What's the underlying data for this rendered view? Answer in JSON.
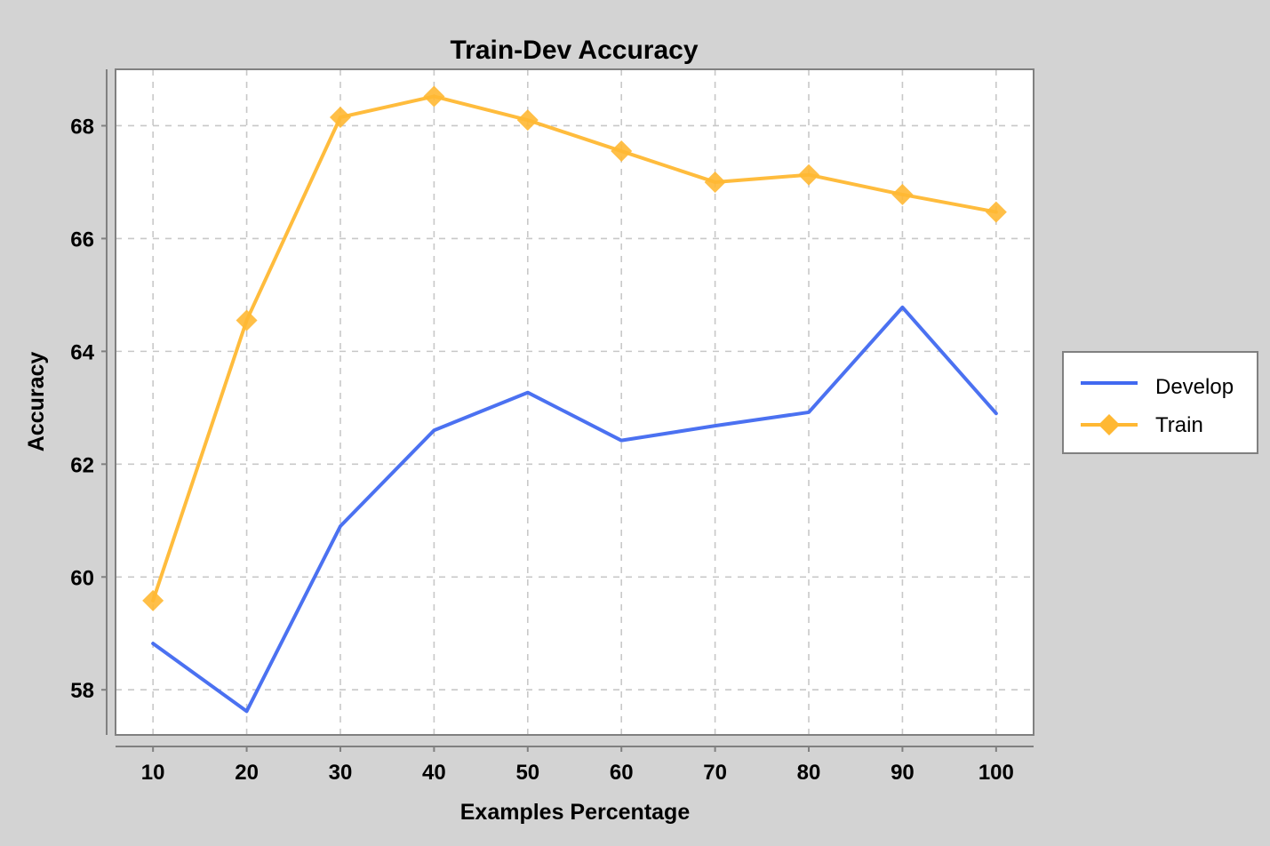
{
  "chart_data": {
    "type": "line",
    "title": "Train-Dev Accuracy",
    "xlabel": "Examples Percentage",
    "ylabel": "Accuracy",
    "x": [
      10,
      20,
      30,
      40,
      50,
      60,
      70,
      80,
      90,
      100
    ],
    "xticks": [
      10,
      20,
      30,
      40,
      50,
      60,
      70,
      80,
      90,
      100
    ],
    "yticks": [
      58,
      60,
      62,
      64,
      66,
      68
    ],
    "xlim": [
      6,
      104
    ],
    "ylim": [
      57.2,
      69.0
    ],
    "grid": true,
    "legend_position": "right",
    "series": [
      {
        "name": "Develop",
        "color": "#4169f0",
        "marker": "none",
        "values": [
          58.82,
          57.62,
          60.9,
          62.6,
          63.27,
          62.42,
          62.68,
          62.92,
          64.78,
          62.9
        ]
      },
      {
        "name": "Train",
        "color": "#ffb833",
        "marker": "diamond",
        "values": [
          59.58,
          64.55,
          68.15,
          68.52,
          68.1,
          67.55,
          67.0,
          67.13,
          66.78,
          66.47
        ]
      }
    ]
  }
}
